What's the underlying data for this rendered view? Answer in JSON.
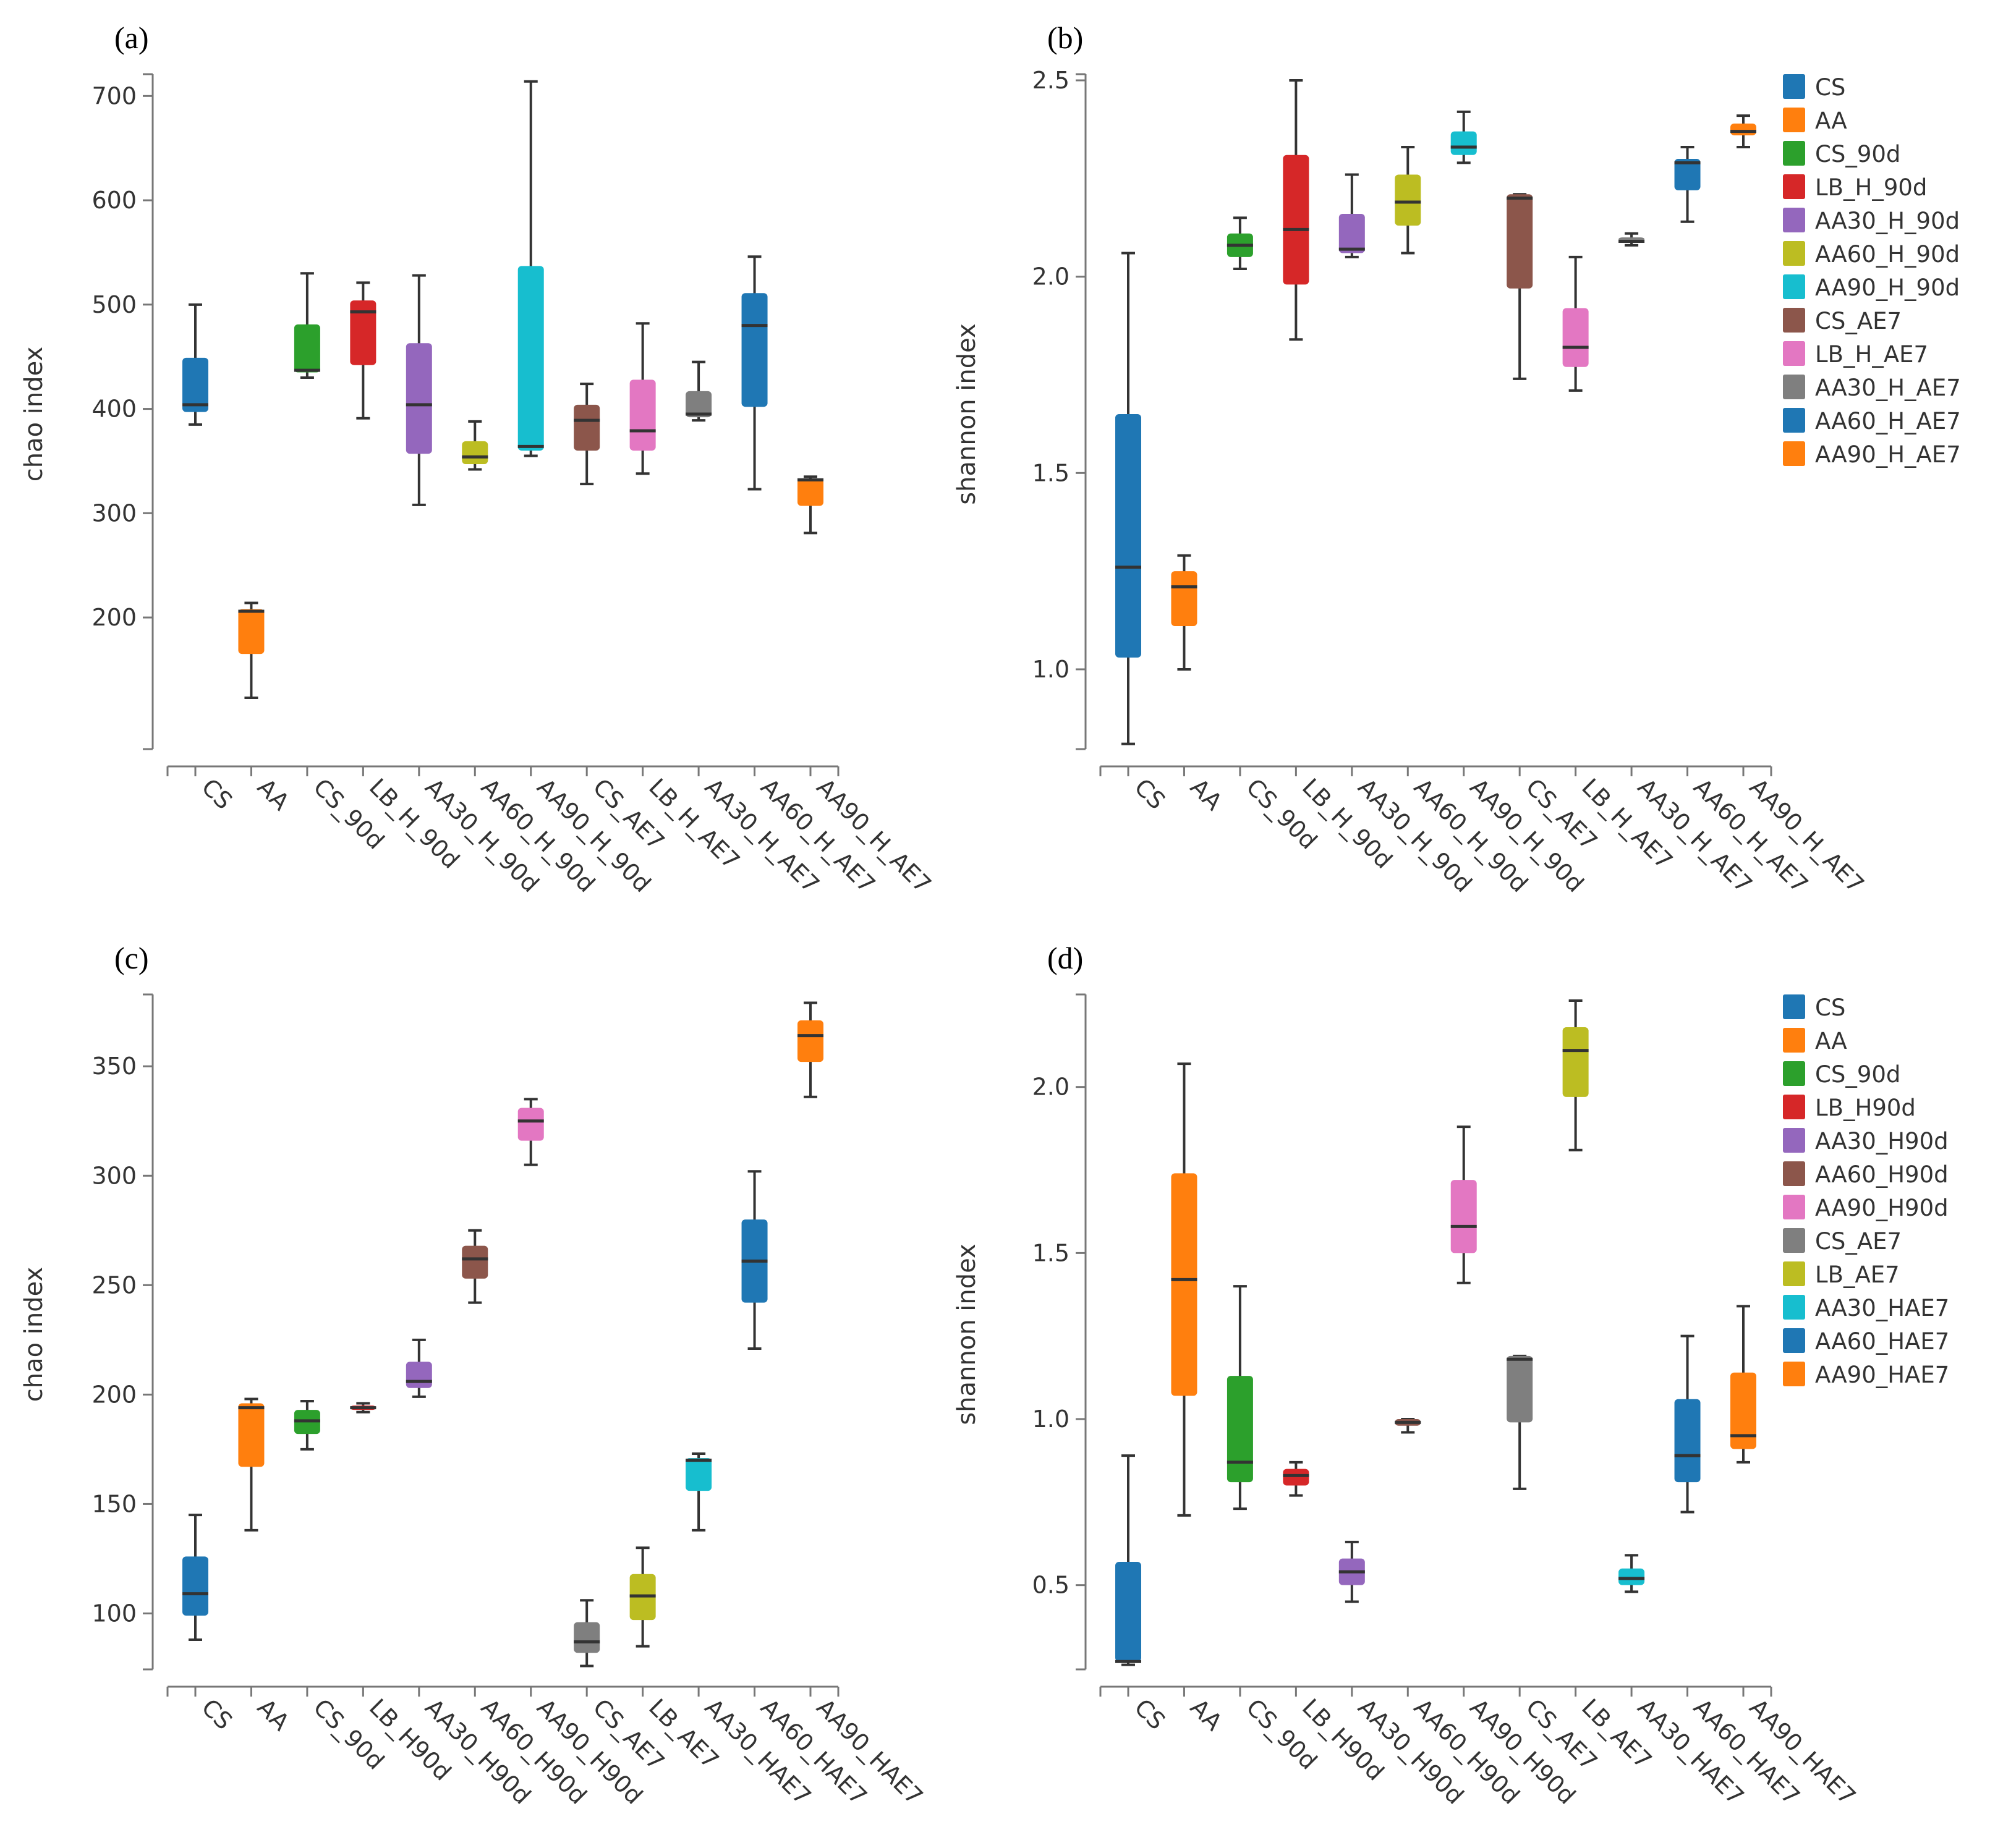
{
  "chart_data": [
    {
      "type": "box",
      "panel_label": "(a)",
      "ylabel": "chao index",
      "ylim": [
        75,
        715
      ],
      "yticks": [
        200,
        300,
        400,
        500,
        600,
        700
      ],
      "legend": false,
      "categories": [
        "CS",
        "AA",
        "CS_90d",
        "LB_H_90d",
        "AA30_H_90d",
        "AA60_H_90d",
        "AA90_H_90d",
        "CS_AE7",
        "LB_H_AE7",
        "AA30_H_AE7",
        "AA60_H_AE7",
        "AA90_H_AE7"
      ],
      "colors": [
        "#1f77b4",
        "#ff7f0e",
        "#2ca02c",
        "#d62728",
        "#9467bd",
        "#bcbd22",
        "#17becf",
        "#8c564b",
        "#e377c2",
        "#7f7f7f",
        "#1f77b4",
        "#ff7f0e"
      ],
      "boxes": [
        {
          "min": 385,
          "q1": 397,
          "median": 404,
          "q3": 449,
          "max": 500
        },
        {
          "min": 123,
          "q1": 165,
          "median": 206,
          "q3": 208,
          "max": 214
        },
        {
          "min": 430,
          "q1": 435,
          "median": 437,
          "q3": 481,
          "max": 530
        },
        {
          "min": 391,
          "q1": 442,
          "median": 493,
          "q3": 504,
          "max": 521
        },
        {
          "min": 308,
          "q1": 357,
          "median": 404,
          "q3": 463,
          "max": 528
        },
        {
          "min": 342,
          "q1": 347,
          "median": 354,
          "q3": 369,
          "max": 388
        },
        {
          "min": 355,
          "q1": 360,
          "median": 364,
          "q3": 537,
          "max": 714
        },
        {
          "min": 328,
          "q1": 360,
          "median": 389,
          "q3": 404,
          "max": 424
        },
        {
          "min": 338,
          "q1": 360,
          "median": 379,
          "q3": 428,
          "max": 482
        },
        {
          "min": 389,
          "q1": 392,
          "median": 395,
          "q3": 417,
          "max": 445
        },
        {
          "min": 323,
          "q1": 402,
          "median": 480,
          "q3": 511,
          "max": 546
        },
        {
          "min": 281,
          "q1": 307,
          "median": 332,
          "q3": 333,
          "max": 335
        }
      ]
    },
    {
      "type": "box",
      "panel_label": "(b)",
      "ylabel": "shannon index",
      "ylim": [
        0.8,
        2.5
      ],
      "yticks": [
        1.0,
        1.5,
        2.0,
        2.5
      ],
      "legend": true,
      "categories": [
        "CS",
        "AA",
        "CS_90d",
        "LB_H_90d",
        "AA30_H_90d",
        "AA60_H_90d",
        "AA90_H_90d",
        "CS_AE7",
        "LB_H_AE7",
        "AA30_H_AE7",
        "AA60_H_AE7",
        "AA90_H_AE7"
      ],
      "colors": [
        "#1f77b4",
        "#ff7f0e",
        "#2ca02c",
        "#d62728",
        "#9467bd",
        "#bcbd22",
        "#17becf",
        "#8c564b",
        "#e377c2",
        "#7f7f7f",
        "#1f77b4",
        "#ff7f0e"
      ],
      "boxes": [
        {
          "min": 0.81,
          "q1": 1.03,
          "median": 1.26,
          "q3": 1.65,
          "max": 2.06
        },
        {
          "min": 1.0,
          "q1": 1.11,
          "median": 1.21,
          "q3": 1.25,
          "max": 1.29
        },
        {
          "min": 2.02,
          "q1": 2.05,
          "median": 2.08,
          "q3": 2.11,
          "max": 2.15
        },
        {
          "min": 1.84,
          "q1": 1.98,
          "median": 2.12,
          "q3": 2.31,
          "max": 2.5
        },
        {
          "min": 2.05,
          "q1": 2.06,
          "median": 2.07,
          "q3": 2.16,
          "max": 2.26
        },
        {
          "min": 2.06,
          "q1": 2.13,
          "median": 2.19,
          "q3": 2.26,
          "max": 2.33
        },
        {
          "min": 2.29,
          "q1": 2.31,
          "median": 2.33,
          "q3": 2.37,
          "max": 2.42
        },
        {
          "min": 1.74,
          "q1": 1.97,
          "median": 2.2,
          "q3": 2.21,
          "max": 2.21
        },
        {
          "min": 1.71,
          "q1": 1.77,
          "median": 1.82,
          "q3": 1.92,
          "max": 2.05
        },
        {
          "min": 2.08,
          "q1": 2.09,
          "median": 2.09,
          "q3": 2.1,
          "max": 2.11
        },
        {
          "min": 2.14,
          "q1": 2.22,
          "median": 2.29,
          "q3": 2.3,
          "max": 2.33
        },
        {
          "min": 2.33,
          "q1": 2.36,
          "median": 2.37,
          "q3": 2.39,
          "max": 2.41
        }
      ]
    },
    {
      "type": "box",
      "panel_label": "(c)",
      "ylabel": "chao index",
      "ylim": [
        75,
        380
      ],
      "yticks": [
        100,
        150,
        200,
        250,
        300,
        350
      ],
      "legend": false,
      "categories": [
        "CS",
        "AA",
        "CS_90d",
        "LB_H90d",
        "AA30_H90d",
        "AA60_H90d",
        "AA90_H90d",
        "CS_AE7",
        "LB_AE7",
        "AA30_HAE7",
        "AA60_HAE7",
        "AA90_HAE7"
      ],
      "colors": [
        "#1f77b4",
        "#ff7f0e",
        "#2ca02c",
        "#d62728",
        "#9467bd",
        "#8c564b",
        "#e377c2",
        "#7f7f7f",
        "#bcbd22",
        "#17becf",
        "#1f77b4",
        "#ff7f0e"
      ],
      "boxes": [
        {
          "min": 88,
          "q1": 99,
          "median": 109,
          "q3": 126,
          "max": 145
        },
        {
          "min": 138,
          "q1": 167,
          "median": 194,
          "q3": 196,
          "max": 198
        },
        {
          "min": 175,
          "q1": 182,
          "median": 188,
          "q3": 193,
          "max": 197
        },
        {
          "min": 192,
          "q1": 193,
          "median": 194,
          "q3": 195,
          "max": 196
        },
        {
          "min": 199,
          "q1": 203,
          "median": 206,
          "q3": 215,
          "max": 225
        },
        {
          "min": 242,
          "q1": 253,
          "median": 262,
          "q3": 268,
          "max": 275
        },
        {
          "min": 305,
          "q1": 316,
          "median": 325,
          "q3": 331,
          "max": 335
        },
        {
          "min": 76,
          "q1": 82,
          "median": 87,
          "q3": 96,
          "max": 106
        },
        {
          "min": 85,
          "q1": 97,
          "median": 108,
          "q3": 118,
          "max": 130
        },
        {
          "min": 138,
          "q1": 156,
          "median": 170,
          "q3": 171,
          "max": 173
        },
        {
          "min": 221,
          "q1": 242,
          "median": 261,
          "q3": 280,
          "max": 302
        },
        {
          "min": 336,
          "q1": 352,
          "median": 364,
          "q3": 371,
          "max": 379
        }
      ]
    },
    {
      "type": "box",
      "panel_label": "(d)",
      "ylabel": "shannon index",
      "ylim": [
        0.25,
        2.26
      ],
      "yticks": [
        0.5,
        1.0,
        1.5,
        2.0
      ],
      "legend": true,
      "categories": [
        "CS",
        "AA",
        "CS_90d",
        "LB_H90d",
        "AA30_H90d",
        "AA60_H90d",
        "AA90_H90d",
        "CS_AE7",
        "LB_AE7",
        "AA30_HAE7",
        "AA60_HAE7",
        "AA90_HAE7"
      ],
      "colors": [
        "#1f77b4",
        "#ff7f0e",
        "#2ca02c",
        "#d62728",
        "#9467bd",
        "#8c564b",
        "#e377c2",
        "#7f7f7f",
        "#bcbd22",
        "#17becf",
        "#1f77b4",
        "#ff7f0e"
      ],
      "boxes": [
        {
          "min": 0.26,
          "q1": 0.27,
          "median": 0.27,
          "q3": 0.57,
          "max": 0.89
        },
        {
          "min": 0.71,
          "q1": 1.07,
          "median": 1.42,
          "q3": 1.74,
          "max": 2.07
        },
        {
          "min": 0.73,
          "q1": 0.81,
          "median": 0.87,
          "q3": 1.13,
          "max": 1.4
        },
        {
          "min": 0.77,
          "q1": 0.8,
          "median": 0.83,
          "q3": 0.85,
          "max": 0.87
        },
        {
          "min": 0.45,
          "q1": 0.5,
          "median": 0.54,
          "q3": 0.58,
          "max": 0.63
        },
        {
          "min": 0.96,
          "q1": 0.98,
          "median": 0.99,
          "q3": 1.0,
          "max": 1.0
        },
        {
          "min": 1.41,
          "q1": 1.5,
          "median": 1.58,
          "q3": 1.72,
          "max": 1.88
        },
        {
          "min": 0.79,
          "q1": 0.99,
          "median": 1.18,
          "q3": 1.19,
          "max": 1.19
        },
        {
          "min": 1.81,
          "q1": 1.97,
          "median": 2.11,
          "q3": 2.18,
          "max": 2.26
        },
        {
          "min": 0.48,
          "q1": 0.5,
          "median": 0.52,
          "q3": 0.55,
          "max": 0.59
        },
        {
          "min": 0.72,
          "q1": 0.81,
          "median": 0.89,
          "q3": 1.06,
          "max": 1.25
        },
        {
          "min": 0.87,
          "q1": 0.91,
          "median": 0.95,
          "q3": 1.14,
          "max": 1.34
        }
      ]
    }
  ]
}
